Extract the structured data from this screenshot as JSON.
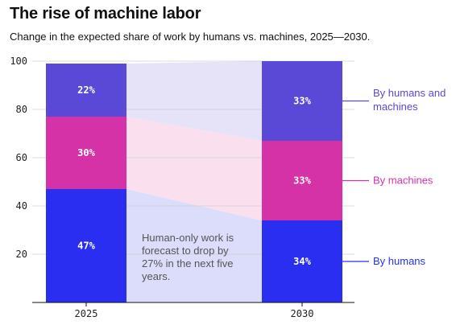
{
  "title": "The rise of machine labor",
  "subtitle": "Change in the expected share of work by humans vs. machines, 2025—2030.",
  "chart_data": {
    "type": "bar",
    "stacked": true,
    "categories": [
      "2025",
      "2030"
    ],
    "series": [
      {
        "name": "By humans",
        "values": [
          47,
          34
        ],
        "labels": [
          "47%",
          "34%"
        ],
        "color": "#2a2ef0",
        "band_color": "#dcdcfb"
      },
      {
        "name": "By machines",
        "values": [
          30,
          33
        ],
        "labels": [
          "30%",
          "33%"
        ],
        "color": "#d432a6",
        "band_color": "#fae0ef"
      },
      {
        "name": "By humans and machines",
        "values": [
          22,
          33
        ],
        "labels": [
          "22%",
          "33%"
        ],
        "color": "#5a48d6",
        "band_color": "#e6e2f8"
      }
    ],
    "legend_lines": [
      [
        "By humans and",
        "machines"
      ],
      [
        "By machines"
      ],
      [
        "By humans"
      ]
    ],
    "yticks": [
      "20",
      "40",
      "60",
      "80",
      "100"
    ],
    "ylim": [
      0,
      100
    ],
    "annotation": [
      "Human-only work is",
      "forecast to drop by",
      "27% in the next five",
      "years."
    ],
    "grid": true,
    "legend_position": "right"
  }
}
